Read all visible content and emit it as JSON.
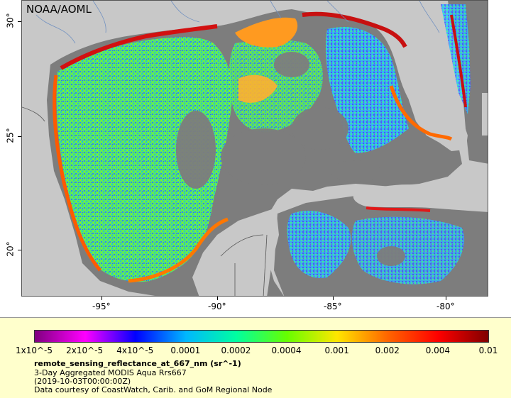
{
  "credit": "NOAA/AOML",
  "longitude_labels": [
    "-95°",
    "-90°",
    "-85°",
    "-80°"
  ],
  "latitude_labels": [
    "30°",
    "25°",
    "20°"
  ],
  "colors": {
    "land": "#c8c8c8",
    "no_data": "#7d7d7d",
    "legend_bg": "#ffffcc"
  },
  "colorbar": {
    "ticks": [
      "1x10^-5",
      "2x10^-5",
      "4x10^-5",
      "0.0001",
      "0.0002",
      "0.0004",
      "0.001",
      "0.002",
      "0.004",
      "0.01"
    ],
    "stops": [
      "#80007f",
      "#ff00ff",
      "#0000ff",
      "#00b7ff",
      "#00ffa0",
      "#66ff00",
      "#ffe600",
      "#ff6600",
      "#ff0000",
      "#800000"
    ]
  },
  "legend": {
    "variable": "remote_sensing_reflectance_at_667_nm (sr^-1)",
    "dataset": "3-Day Aggregated MODIS Aqua Rrs667",
    "time": "(2019-10-03T00:00:00Z)",
    "courtesy": "Data courtesy of CoastWatch, Carib. and GoM Regional Node"
  }
}
